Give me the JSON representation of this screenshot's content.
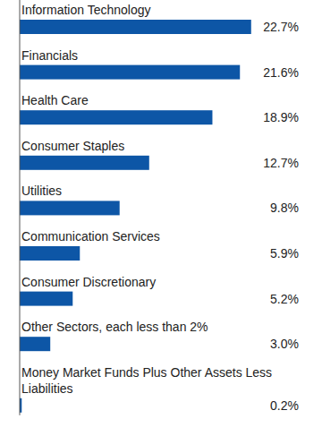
{
  "chart_data": {
    "type": "bar",
    "orientation": "horizontal",
    "categories": [
      "Information Technology",
      "Financials",
      "Health Care",
      "Consumer Staples",
      "Utilities",
      "Communication Services",
      "Consumer Discretionary",
      "Other Sectors, each less than 2%",
      "Money Market Funds Plus Other Assets Less Liabilities"
    ],
    "values": [
      22.7,
      21.6,
      18.9,
      12.7,
      9.8,
      5.9,
      5.2,
      3.0,
      0.2
    ],
    "value_labels": [
      "22.7%",
      "21.6%",
      "18.9%",
      "12.7%",
      "9.8%",
      "5.9%",
      "5.2%",
      "3.0%",
      "0.2%"
    ],
    "color": "#0d56a6",
    "xlim": [
      0,
      25
    ],
    "data_labels": true,
    "tick_labels": false,
    "grid": false
  }
}
